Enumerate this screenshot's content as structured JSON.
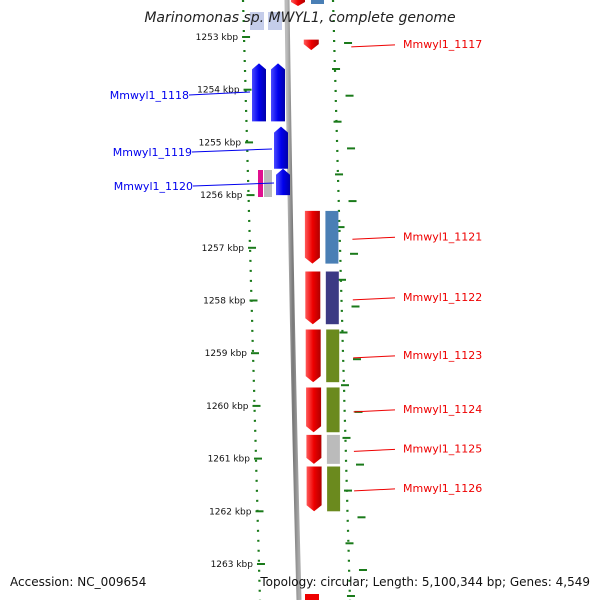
{
  "title": "Marinomonas sp. MWYL1, complete genome",
  "footer": {
    "accession": "Accession: NC_009654",
    "summary": "Topology: circular; Length: 5,100,344 bp; Genes: 4,549"
  },
  "chart_data": {
    "type": "genome-map",
    "axis": {
      "unit": "kbp",
      "ticks": [
        1253,
        1254,
        1255,
        1256,
        1257,
        1258,
        1259,
        1260,
        1261,
        1262,
        1263
      ],
      "tick_labels": [
        "1253 kbp",
        "1254 kbp",
        "1255 kbp",
        "1256 kbp",
        "1257 kbp",
        "1258 kbp",
        "1259 kbp",
        "1260 kbp",
        "1261 kbp",
        "1262 kbp",
        "1263 kbp"
      ]
    },
    "colors": {
      "forward_strand": "#0000ee",
      "reverse_strand": "#ee0000",
      "backbone": "#888888",
      "ruler": "#1a7a1a",
      "cog_steelblue": "#4a7fb5",
      "cog_darkblue": "#3c3a84",
      "cog_olive": "#6b8a1e",
      "cog_gray": "#bbbbbb",
      "cog_magenta": "#e0108f",
      "cog_lightblue": "#c5cdea"
    },
    "genes": [
      {
        "label": "Mmwyl1_1117",
        "strand": "reverse",
        "start": 1253.05,
        "end": 1253.25
      },
      {
        "label": "Mmwyl1_1118",
        "strand": "forward",
        "start": 1253.5,
        "end": 1254.6
      },
      {
        "label": "Mmwyl1_1119",
        "strand": "forward",
        "start": 1254.7,
        "end": 1255.5
      },
      {
        "label": "Mmwyl1_1120",
        "strand": "forward",
        "start": 1255.5,
        "end": 1256.0
      },
      {
        "label": "Mmwyl1_1121",
        "strand": "reverse",
        "start": 1256.3,
        "end": 1257.3
      },
      {
        "label": "Mmwyl1_1122",
        "strand": "reverse",
        "start": 1257.45,
        "end": 1258.45
      },
      {
        "label": "Mmwyl1_1123",
        "strand": "reverse",
        "start": 1258.55,
        "end": 1259.55
      },
      {
        "label": "Mmwyl1_1124",
        "strand": "reverse",
        "start": 1259.65,
        "end": 1260.5
      },
      {
        "label": "Mmwyl1_1125",
        "strand": "reverse",
        "start": 1260.55,
        "end": 1261.1
      },
      {
        "label": "Mmwyl1_1126",
        "strand": "reverse",
        "start": 1261.15,
        "end": 1262.0
      }
    ]
  }
}
